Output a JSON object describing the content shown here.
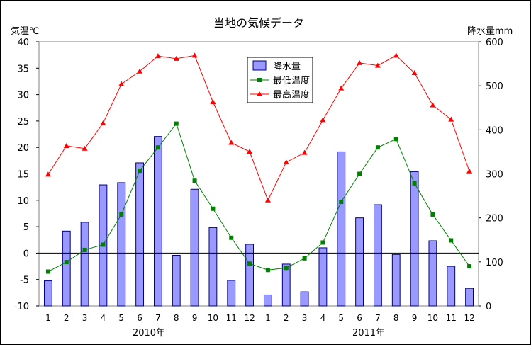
{
  "chart_data": {
    "type": "bar+line",
    "title": "当地の気候データ",
    "y_left_label": "気温℃",
    "y_right_label": "降水量mm",
    "y_left_lim": [
      -10,
      40
    ],
    "y_left_ticks": [
      "-10",
      "-5",
      "0",
      "5",
      "10",
      "15",
      "20",
      "25",
      "30",
      "35",
      "40"
    ],
    "y_right_lim": [
      0,
      600
    ],
    "y_right_ticks": [
      "0",
      "100",
      "200",
      "300",
      "400",
      "500",
      "600"
    ],
    "categories": [
      "1",
      "2",
      "3",
      "4",
      "5",
      "6",
      "7",
      "8",
      "9",
      "10",
      "11",
      "12",
      "1",
      "2",
      "3",
      "4",
      "5",
      "6",
      "7",
      "8",
      "9",
      "10",
      "11",
      "12"
    ],
    "year_labels": [
      "2010年",
      "2011年"
    ],
    "legend_position": "top-center",
    "series": [
      {
        "name": "降水量",
        "kind": "bar",
        "axis": "right",
        "color": "#9999ff",
        "values": [
          57,
          170,
          190,
          275,
          280,
          325,
          385,
          115,
          265,
          178,
          58,
          140,
          25,
          95,
          32,
          132,
          350,
          200,
          230,
          117,
          305,
          148,
          90,
          40
        ]
      },
      {
        "name": "最低温度",
        "kind": "line",
        "axis": "left",
        "color": "#008000",
        "marker": "square",
        "values": [
          -3.5,
          -1.7,
          0.6,
          1.6,
          7.3,
          15.6,
          20.0,
          24.5,
          13.7,
          8.4,
          2.9,
          -2.0,
          -3.2,
          -2.8,
          -1.0,
          2.0,
          9.7,
          15.0,
          20.0,
          21.6,
          13.2,
          7.3,
          2.4,
          -2.5
        ]
      },
      {
        "name": "最高温度",
        "kind": "line",
        "axis": "left",
        "color": "#ff0000",
        "marker": "triangle",
        "values": [
          14.9,
          20.3,
          19.8,
          24.6,
          32.0,
          34.4,
          37.3,
          36.8,
          37.4,
          28.6,
          20.9,
          19.2,
          10.0,
          17.2,
          19.0,
          25.2,
          31.2,
          36.0,
          35.5,
          37.4,
          34.1,
          28.0,
          25.3,
          15.5
        ]
      }
    ]
  }
}
